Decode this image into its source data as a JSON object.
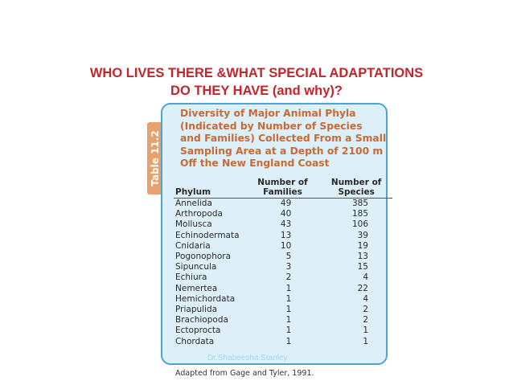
{
  "title": {
    "line1": "WHO LIVES THERE &WHAT SPECIAL ADAPTATIONS",
    "line2": "DO THEY HAVE (and why)?"
  },
  "table_tab": "Table 11.2",
  "caption": [
    "Diversity of Major Animal Phyla",
    "(Indicated by Number of Species",
    "and Families) Collected From a Small",
    "Sampling Area at a Depth of 2100 m",
    "Off the New England Coast"
  ],
  "headers": {
    "phylum": "Phylum",
    "families_1": "Number of",
    "families_2": "Families",
    "species_1": "Number of",
    "species_2": "Species"
  },
  "rows": [
    {
      "phylum": "Annelida",
      "families": "49",
      "species": "385"
    },
    {
      "phylum": "Arthropoda",
      "families": "40",
      "species": "185"
    },
    {
      "phylum": "Mollusca",
      "families": "43",
      "species": "106"
    },
    {
      "phylum": "Echinodermata",
      "families": "13",
      "species": "39"
    },
    {
      "phylum": "Cnidaria",
      "families": "10",
      "species": "19"
    },
    {
      "phylum": "Pogonophora",
      "families": "5",
      "species": "13"
    },
    {
      "phylum": "Sipuncula",
      "families": "3",
      "species": "15"
    },
    {
      "phylum": "Echiura",
      "families": "2",
      "species": "4"
    },
    {
      "phylum": "Nemertea",
      "families": "1",
      "species": "22"
    },
    {
      "phylum": "Hemichordata",
      "families": "1",
      "species": "4"
    },
    {
      "phylum": "Priapulida",
      "families": "1",
      "species": "2"
    },
    {
      "phylum": "Brachiopoda",
      "families": "1",
      "species": "2"
    },
    {
      "phylum": "Ectoprocta",
      "families": "1",
      "species": "1"
    },
    {
      "phylum": "Chordata",
      "families": "1",
      "species": "1"
    }
  ],
  "watermark": "Dr.Shabeesha Stanley",
  "source": "Adapted from Gage and Tyler, 1991.",
  "colors": {
    "title": "#c0272d",
    "caption": "#c96a34",
    "panel_fill": "#ddeff8",
    "panel_border": "#4fa3cf",
    "tab": "#e8a06c"
  }
}
